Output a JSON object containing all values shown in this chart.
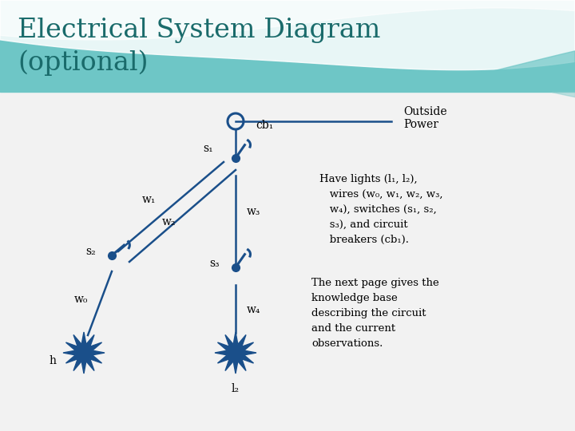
{
  "title_line1": "Electrical System Diagram",
  "title_line2": "(optional)",
  "title_color": "#1a6b6b",
  "title_fontsize": 24,
  "title2_fontsize": 24,
  "diagram_color": "#1a4f8a",
  "text_color": "#000000",
  "info_text_1": "Have lights (l₁, l₂),\n   wires (w₀, w₁, w₂, w₃,\n   w₄), switches (s₁, s₂,\n   s₃), and circuit\n   breakers (cb₁).",
  "info_text_2": "The next page gives the\nknowledge base\ndescribing the circuit\nand the current\nobservations.",
  "outside_power_label": "Outside\nPower",
  "cb1_label": "cb₁",
  "s1_label": "s₁",
  "s2_label": "s₂",
  "s3_label": "s₃",
  "w0_label": "w₀",
  "w1_label": "w₁",
  "w2_label": "w₂",
  "w3_label": "w₃",
  "w4_label": "w₄",
  "l2_label": "l₂",
  "h_label": "h",
  "bg_teal": "#6ec6c6",
  "bg_white": "#ffffff",
  "bg_body": "#f0f0f0",
  "wave1_color": "#ffffff",
  "wave2_color": "#b0dcdc"
}
